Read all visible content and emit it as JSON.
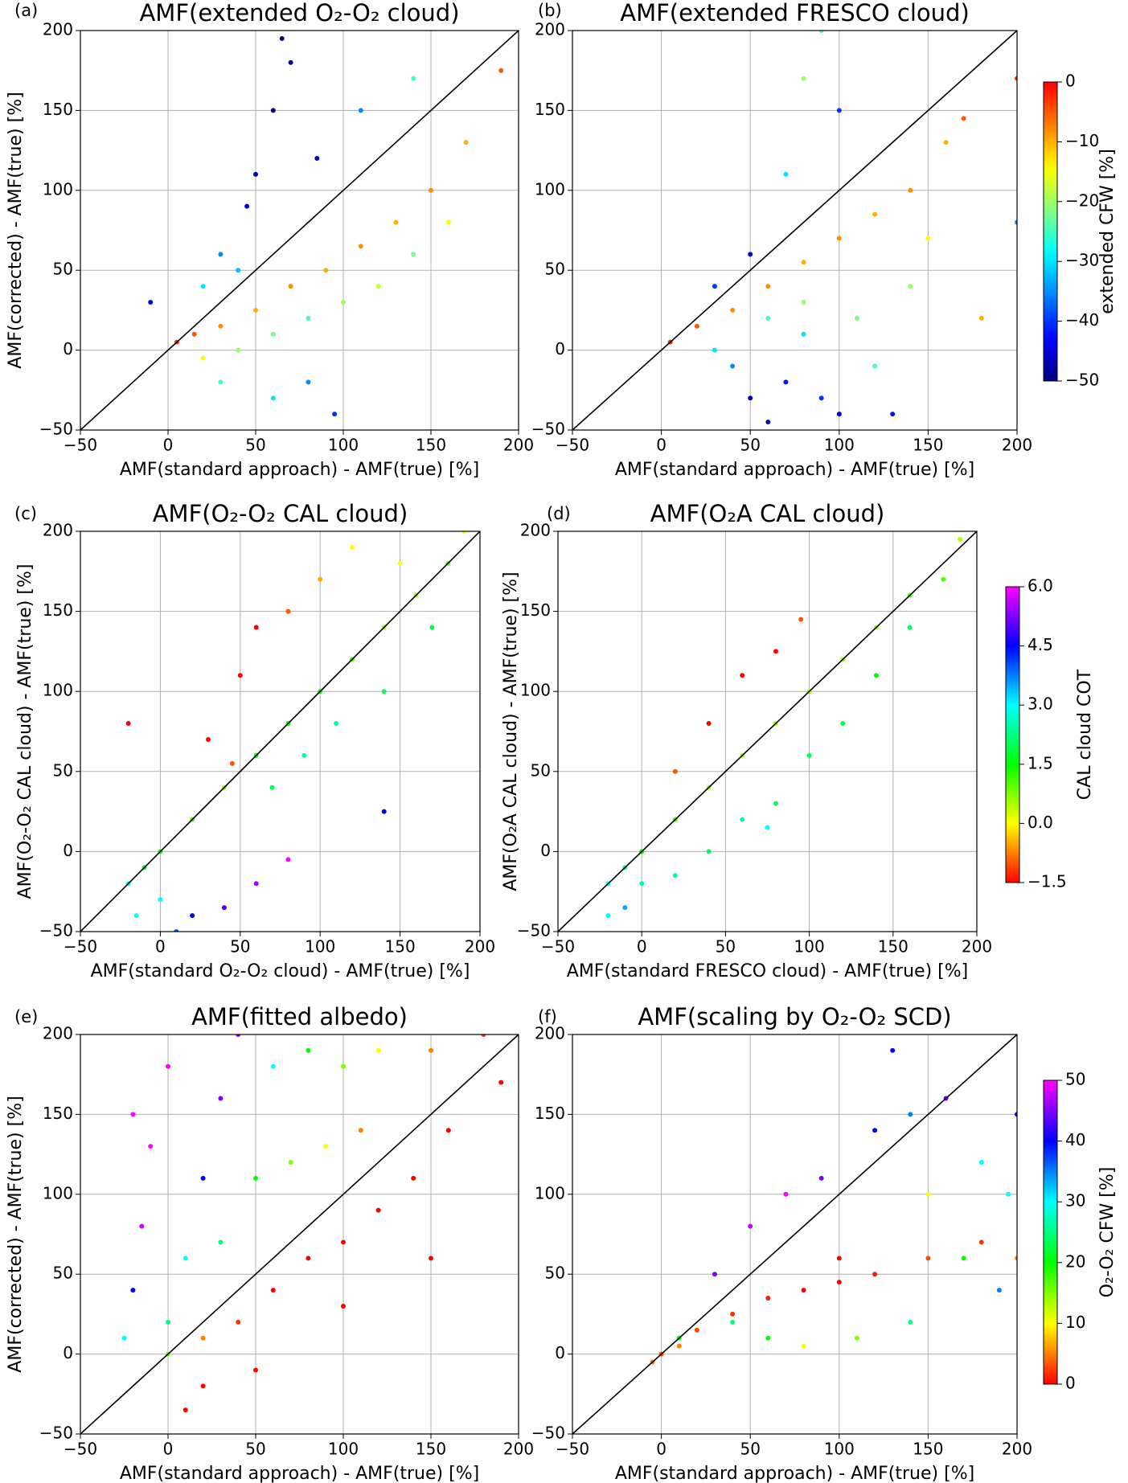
{
  "chart_data": [
    {
      "type": "scatter",
      "panel_label": "(a)",
      "title": "AMF(extended O₂-O₂ cloud)",
      "xlabel": "AMF(standard approach) - AMF(true) [%]",
      "ylabel": "AMF(corrected) - AMF(true) [%]",
      "xlim": [
        -50,
        200
      ],
      "ylim": [
        -50,
        200
      ],
      "xticks": [
        {
          "value": -50,
          "label": "−50"
        },
        0,
        50,
        100,
        150,
        200
      ],
      "yticks": [
        {
          "value": -50,
          "label": "−50"
        },
        0,
        50,
        100,
        150,
        200
      ],
      "grid": true,
      "one_to_one_line": true,
      "colormap": "jet",
      "clim": [
        -50,
        0
      ],
      "x": [
        5,
        15,
        30,
        50,
        70,
        90,
        110,
        130,
        150,
        170,
        190,
        40,
        60,
        80,
        100,
        120,
        140,
        60,
        80,
        95,
        30,
        50,
        60,
        70,
        45,
        85,
        65,
        30,
        40,
        20,
        110,
        140,
        -10,
        160,
        20
      ],
      "y": [
        5,
        10,
        15,
        25,
        40,
        50,
        65,
        80,
        100,
        130,
        175,
        0,
        10,
        20,
        30,
        40,
        60,
        -30,
        -20,
        -40,
        -20,
        110,
        150,
        180,
        90,
        120,
        195,
        60,
        50,
        40,
        150,
        170,
        30,
        80,
        -5
      ],
      "c": [
        -3,
        -5,
        -8,
        -10,
        -8,
        -10,
        -8,
        -10,
        -8,
        -10,
        -5,
        -20,
        -22,
        -25,
        -20,
        -18,
        -22,
        -30,
        -35,
        -40,
        -25,
        -48,
        -50,
        -48,
        -45,
        -47,
        -50,
        -35,
        -32,
        -30,
        -35,
        -25,
        -45,
        -15,
        -15
      ]
    },
    {
      "type": "scatter",
      "panel_label": "(b)",
      "title": "AMF(extended FRESCO cloud)",
      "xlabel": "AMF(standard approach) - AMF(true) [%]",
      "xlim": [
        -50,
        200
      ],
      "ylim": [
        -50,
        200
      ],
      "xticks": [
        {
          "value": -50,
          "label": "−50"
        },
        0,
        50,
        100,
        150,
        200
      ],
      "yticks": [
        {
          "value": -50,
          "label": "−50"
        },
        0,
        50,
        100,
        150,
        200
      ],
      "grid": true,
      "one_to_one_line": true,
      "colormap": "jet",
      "clim": [
        -50,
        0
      ],
      "colorbar": {
        "label": "extended CFW [%]",
        "ticks": [
          0,
          {
            "value": -10,
            "label": "−10"
          },
          {
            "value": -20,
            "label": "−20"
          },
          {
            "value": -30,
            "label": "−30"
          },
          {
            "value": -40,
            "label": "−40"
          },
          {
            "value": -50,
            "label": "−50"
          }
        ]
      },
      "x": [
        5,
        20,
        40,
        60,
        80,
        100,
        120,
        140,
        160,
        170,
        200,
        30,
        40,
        50,
        60,
        70,
        80,
        90,
        100,
        60,
        80,
        110,
        120,
        140,
        150,
        50,
        70,
        80,
        90,
        100,
        130,
        200,
        180,
        30
      ],
      "y": [
        5,
        15,
        25,
        40,
        55,
        70,
        85,
        100,
        130,
        145,
        170,
        40,
        -10,
        -30,
        -45,
        -20,
        10,
        -30,
        -40,
        20,
        30,
        20,
        -10,
        40,
        70,
        60,
        110,
        170,
        200,
        150,
        -40,
        80,
        20,
        0
      ],
      "c": [
        -3,
        -5,
        -8,
        -8,
        -10,
        -8,
        -10,
        -8,
        -10,
        -5,
        -3,
        -40,
        -35,
        -45,
        -48,
        -42,
        -30,
        -40,
        -45,
        -25,
        -20,
        -22,
        -25,
        -20,
        -15,
        -45,
        -30,
        -20,
        -25,
        -40,
        -42,
        -35,
        -10,
        -30
      ]
    },
    {
      "type": "scatter",
      "panel_label": "(c)",
      "title": "AMF(O₂-O₂ CAL cloud)",
      "xlabel": "AMF(standard O₂-O₂ cloud) - AMF(true) [%]",
      "ylabel": "AMF(O₂-O₂ CAL cloud) - AMF(true) [%]",
      "xlim": [
        -50,
        200
      ],
      "ylim": [
        -50,
        200
      ],
      "xticks": [
        {
          "value": -50,
          "label": "−50"
        },
        0,
        50,
        100,
        150,
        200
      ],
      "yticks": [
        {
          "value": -50,
          "label": "−50"
        },
        0,
        50,
        100,
        150,
        200
      ],
      "grid": true,
      "one_to_one_line": true,
      "colormap": "rainbow",
      "clim": [
        -1.5,
        6.0
      ],
      "x": [
        -20,
        -10,
        0,
        20,
        40,
        60,
        80,
        100,
        120,
        140,
        160,
        180,
        190,
        30,
        50,
        60,
        80,
        100,
        120,
        150,
        70,
        90,
        110,
        140,
        170,
        0,
        20,
        40,
        60,
        80,
        -15,
        10,
        45,
        140,
        -20
      ],
      "y": [
        -20,
        -10,
        0,
        20,
        40,
        60,
        80,
        100,
        120,
        140,
        160,
        180,
        200,
        70,
        110,
        140,
        150,
        170,
        190,
        180,
        40,
        60,
        80,
        100,
        140,
        -30,
        -40,
        -35,
        -20,
        -5,
        -40,
        -50,
        55,
        25,
        80
      ],
      "c": [
        3,
        2,
        1.5,
        1,
        0.5,
        1.5,
        1.5,
        1.5,
        1,
        0.5,
        0.5,
        1,
        0,
        -1.5,
        -1.5,
        -1.5,
        -1,
        -0.5,
        0,
        0,
        2,
        2.5,
        2.5,
        2,
        2,
        3,
        4.5,
        5,
        5.5,
        6,
        3,
        4,
        -1,
        4.5,
        -1.5
      ]
    },
    {
      "type": "scatter",
      "panel_label": "(d)",
      "title": "AMF(O₂A CAL cloud)",
      "xlabel": "AMF(standard FRESCO cloud) - AMF(true) [%]",
      "ylabel": "AMF(O₂A CAL cloud) - AMF(true) [%]",
      "xlim": [
        -50,
        200
      ],
      "ylim": [
        -50,
        200
      ],
      "xticks": [
        {
          "value": -50,
          "label": "−50"
        },
        0,
        50,
        100,
        150,
        200
      ],
      "yticks": [
        {
          "value": -50,
          "label": "−50"
        },
        0,
        50,
        100,
        150,
        200
      ],
      "grid": true,
      "one_to_one_line": true,
      "colormap": "rainbow",
      "clim": [
        -1.5,
        6.0
      ],
      "colorbar": {
        "label": "CAL cloud COT",
        "ticks": [
          {
            "value": 6.0,
            "label": "6.0"
          },
          4.5,
          {
            "value": 3.0,
            "label": "3.0"
          },
          1.5,
          {
            "value": 0.0,
            "label": "0.0"
          },
          {
            "value": -1.5,
            "label": "−1.5"
          }
        ]
      },
      "x": [
        -20,
        -10,
        0,
        20,
        40,
        60,
        80,
        100,
        120,
        140,
        160,
        190,
        20,
        40,
        60,
        80,
        95,
        0,
        20,
        40,
        60,
        80,
        100,
        120,
        140,
        160,
        -10,
        -20,
        75,
        180
      ],
      "y": [
        -20,
        -10,
        0,
        20,
        40,
        60,
        80,
        100,
        120,
        140,
        160,
        195,
        50,
        80,
        110,
        125,
        145,
        -20,
        -15,
        0,
        20,
        30,
        60,
        80,
        110,
        140,
        -35,
        -40,
        15,
        170
      ],
      "c": [
        3,
        2.5,
        1.5,
        1,
        0.5,
        0.5,
        0.5,
        0.5,
        0.5,
        0.5,
        1,
        0.5,
        -1,
        -1.5,
        -1.5,
        -1.5,
        -1,
        2.5,
        2.5,
        2,
        2.5,
        2,
        2,
        2,
        1.5,
        2,
        3.5,
        3,
        3,
        1
      ]
    },
    {
      "type": "scatter",
      "panel_label": "(e)",
      "title": "AMF(fitted albedo)",
      "xlabel": "AMF(standard approach) - AMF(true) [%]",
      "ylabel": "AMF(corrected) - AMF(true) [%]",
      "xlim": [
        -50,
        200
      ],
      "ylim": [
        -50,
        200
      ],
      "xticks": [
        {
          "value": -50,
          "label": "−50"
        },
        0,
        50,
        100,
        150,
        200
      ],
      "yticks": [
        {
          "value": -50,
          "label": "−50"
        },
        0,
        50,
        100,
        150,
        200
      ],
      "grid": true,
      "one_to_one_line": true,
      "colormap": "rainbow",
      "clim": [
        0,
        50
      ],
      "x": [
        -20,
        -15,
        -10,
        0,
        -25,
        0,
        10,
        20,
        30,
        40,
        60,
        80,
        100,
        120,
        150,
        180,
        50,
        70,
        90,
        110,
        0,
        20,
        40,
        60,
        80,
        100,
        120,
        140,
        160,
        190,
        20,
        50,
        100,
        150,
        10,
        30,
        -20
      ],
      "y": [
        40,
        80,
        130,
        180,
        10,
        20,
        60,
        110,
        160,
        200,
        180,
        190,
        180,
        190,
        190,
        200,
        110,
        120,
        130,
        140,
        0,
        10,
        20,
        40,
        60,
        70,
        90,
        110,
        140,
        170,
        -20,
        -10,
        30,
        60,
        -35,
        70,
        150
      ],
      "c": [
        40,
        48,
        50,
        50,
        30,
        25,
        30,
        40,
        45,
        45,
        30,
        20,
        15,
        10,
        5,
        2,
        20,
        15,
        10,
        5,
        15,
        5,
        2,
        0,
        0,
        0,
        0,
        0,
        0,
        0,
        0,
        0,
        0,
        0,
        0,
        25,
        50
      ]
    },
    {
      "type": "scatter",
      "panel_label": "(f)",
      "title": "AMF(scaling by O₂-O₂ SCD)",
      "xlabel": "AMF(standard approach) - AMF(true) [%]",
      "xlim": [
        -50,
        200
      ],
      "ylim": [
        -50,
        200
      ],
      "xticks": [
        {
          "value": -50,
          "label": "−50"
        },
        0,
        50,
        100,
        150,
        200
      ],
      "yticks": [
        {
          "value": -50,
          "label": "−50"
        },
        0,
        50,
        100,
        150,
        200
      ],
      "grid": true,
      "one_to_one_line": true,
      "colormap": "rainbow",
      "clim": [
        0,
        50
      ],
      "colorbar": {
        "label": "O₂-O₂ CFW [%]",
        "ticks": [
          0,
          10,
          20,
          30,
          40,
          50
        ]
      },
      "x": [
        -5,
        0,
        10,
        20,
        40,
        60,
        80,
        100,
        120,
        150,
        180,
        200,
        30,
        50,
        70,
        90,
        120,
        140,
        160,
        180,
        200,
        170,
        190,
        140,
        110,
        80,
        60,
        40,
        10,
        150,
        195,
        130,
        100
      ],
      "y": [
        -5,
        0,
        5,
        15,
        25,
        35,
        40,
        45,
        50,
        60,
        70,
        60,
        50,
        80,
        100,
        110,
        140,
        150,
        160,
        120,
        150,
        60,
        40,
        20,
        10,
        5,
        10,
        20,
        10,
        100,
        100,
        190,
        60
      ],
      "c": [
        5,
        3,
        5,
        3,
        2,
        1,
        0,
        0,
        1,
        3,
        2,
        5,
        45,
        48,
        50,
        45,
        40,
        35,
        45,
        30,
        40,
        20,
        35,
        25,
        15,
        10,
        20,
        25,
        20,
        10,
        30,
        40,
        0
      ]
    }
  ]
}
